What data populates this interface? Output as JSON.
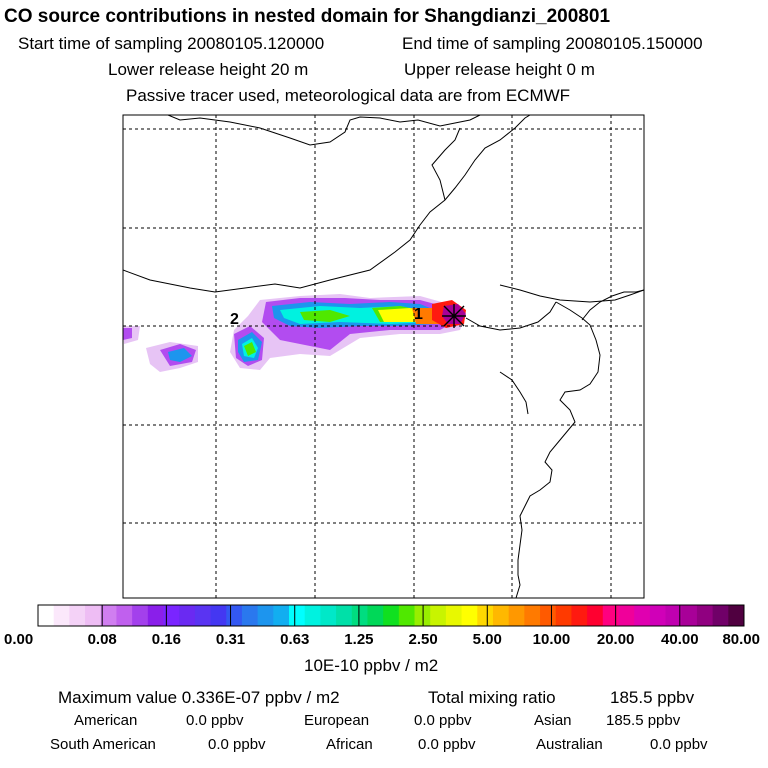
{
  "header": {
    "title": "CO  source contributions in nested domain for Shangdianzi_200801",
    "start_label": "Start time of sampling 20080105.120000",
    "end_label": "End time of sampling 20080105.150000",
    "lower_label": "Lower release height   20 m",
    "upper_label": "Upper release height    0 m",
    "tracer_note": "Passive tracer used, meteorological data are from ECMWF"
  },
  "map": {
    "marker_labels": [
      "1",
      "2"
    ],
    "receptor_icon": "x-star-icon"
  },
  "colorbar": {
    "ticks": [
      "0.00",
      "0.08",
      "0.16",
      "0.31",
      "0.63",
      "1.25",
      "2.50",
      "5.00",
      "10.00",
      "20.00",
      "40.00",
      "80.00"
    ],
    "unit": "10E-10 ppbv / m2",
    "colors": [
      "#ffffff",
      "#fbe8fb",
      "#f4d2f7",
      "#eebdf4",
      "#d07ef0",
      "#c060ee",
      "#a340ec",
      "#8a1fea",
      "#7a25ff",
      "#6a2af2",
      "#5a34f2",
      "#4437f2",
      "#3358f2",
      "#2a78ee",
      "#1d95ee",
      "#12aef0",
      "#00ffff",
      "#00f2e0",
      "#00e8c8",
      "#00e0a8",
      "#00dd80",
      "#00d858",
      "#10e020",
      "#50e800",
      "#98ee00",
      "#c8f400",
      "#e8f800",
      "#ffff00",
      "#ffd800",
      "#ffb800",
      "#ff9800",
      "#ff7a00",
      "#ff5a00",
      "#ff3a00",
      "#ff1a10",
      "#ff0030",
      "#ff0080",
      "#f0009a",
      "#e000b0",
      "#d000b8",
      "#c000b0",
      "#a80098",
      "#900080",
      "#700068",
      "#500040"
    ]
  },
  "footer": {
    "max_label": "Maximum value  0.336E-07 ppbv / m2",
    "total_label": "Total mixing ratio",
    "total_value": "185.5 ppbv",
    "american_label": "American",
    "american_value": "0.0 ppbv",
    "european_label": "European",
    "european_value": "0.0 ppbv",
    "asian_label": "Asian",
    "asian_value": "185.5 ppbv",
    "south_american_label": "South American",
    "south_american_value": "0.0 ppbv",
    "african_label": "African",
    "african_value": "0.0 ppbv",
    "australian_label": "Australian",
    "australian_value": "0.0 ppbv"
  }
}
